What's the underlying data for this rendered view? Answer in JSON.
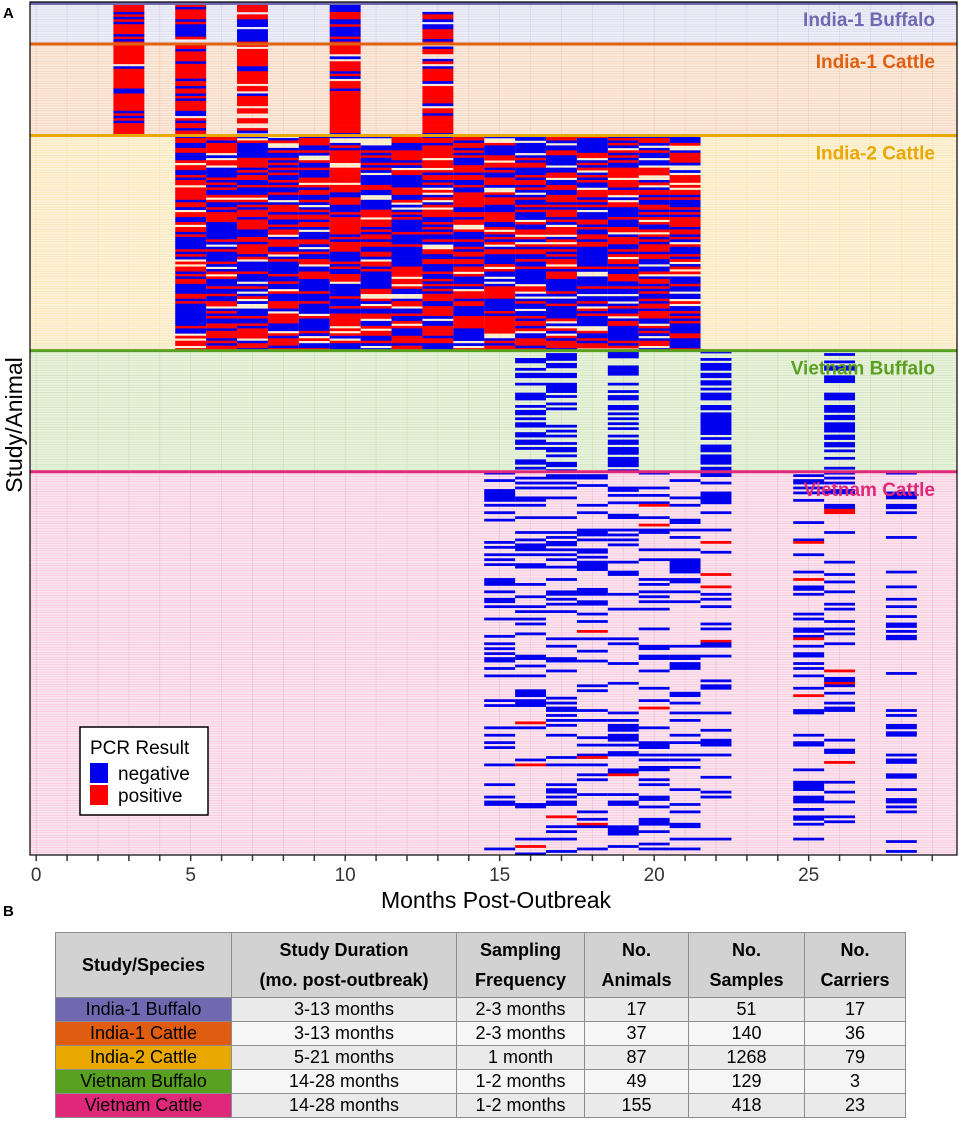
{
  "panel_labels": {
    "a": "A",
    "b": "B"
  },
  "colors": {
    "negative": "#0000ee",
    "positive": "#ff0000"
  },
  "chart_data": {
    "type": "heatmap",
    "title": "",
    "xlabel": "Months Post-Outbreak",
    "ylabel": "Study/Animal",
    "xlim": [
      -0.2,
      29.8
    ],
    "x_ticks": [
      0,
      5,
      10,
      15,
      20,
      25
    ],
    "legend": {
      "title": "PCR Result",
      "position": "bottom-left",
      "entries": [
        {
          "label": "negative",
          "color": "#0000ee"
        },
        {
          "label": "positive",
          "color": "#ff0000"
        }
      ]
    },
    "groups": [
      {
        "name": "India-1 Buffalo",
        "color": "#7268b0",
        "bg": "#eeeef8",
        "animals": 17,
        "months": [
          3,
          5,
          7,
          10,
          13
        ]
      },
      {
        "name": "India-1 Cattle",
        "color": "#e06010",
        "bg": "#fbe9dc",
        "animals": 37,
        "months": [
          3,
          5,
          7,
          10,
          13
        ]
      },
      {
        "name": "India-2 Cattle",
        "color": "#e8a800",
        "bg": "#fdf2d8",
        "animals": 87,
        "months": [
          5,
          6,
          7,
          8,
          9,
          10,
          11,
          12,
          13,
          14,
          15,
          16,
          17,
          18,
          19,
          20,
          21
        ]
      },
      {
        "name": "Vietnam Buffalo",
        "color": "#5aa020",
        "bg": "#e8f2dc",
        "animals": 49,
        "months": [
          16,
          17,
          19,
          22,
          26
        ]
      },
      {
        "name": "Vietnam Cattle",
        "color": "#e0287a",
        "bg": "#fbe4ee",
        "animals": 155,
        "months": [
          15,
          16,
          17,
          18,
          19,
          20,
          21,
          22,
          25,
          26,
          28
        ]
      }
    ]
  },
  "table": {
    "headers": [
      {
        "line1": "Study/Species",
        "line2": ""
      },
      {
        "line1": "Study Duration",
        "line2": "(mo. post-outbreak)"
      },
      {
        "line1": "Sampling",
        "line2": "Frequency"
      },
      {
        "line1": "No.",
        "line2": "Animals"
      },
      {
        "line1": "No.",
        "line2": "Samples"
      },
      {
        "line1": "No.",
        "line2": "Carriers"
      }
    ],
    "rows": [
      {
        "species": "India-1 Buffalo",
        "color": "#7068b0",
        "duration": "3-13 months",
        "frequency": "2-3 months",
        "animals": "17",
        "samples": "51",
        "carriers": "17"
      },
      {
        "species": "India-1 Cattle",
        "color": "#e05c10",
        "duration": "3-13 months",
        "frequency": "2-3 months",
        "animals": "37",
        "samples": "140",
        "carriers": "36"
      },
      {
        "species": "India-2 Cattle",
        "color": "#e8a800",
        "duration": "5-21 months",
        "frequency": "1 month",
        "animals": "87",
        "samples": "1268",
        "carriers": "79"
      },
      {
        "species": "Vietnam Buffalo",
        "color": "#58a020",
        "duration": "14-28 months",
        "frequency": "1-2 months",
        "animals": "49",
        "samples": "129",
        "carriers": "3"
      },
      {
        "species": "Vietnam Cattle",
        "color": "#e0287a",
        "duration": "14-28 months",
        "frequency": "1-2 months",
        "animals": "155",
        "samples": "418",
        "carriers": "23"
      }
    ]
  }
}
